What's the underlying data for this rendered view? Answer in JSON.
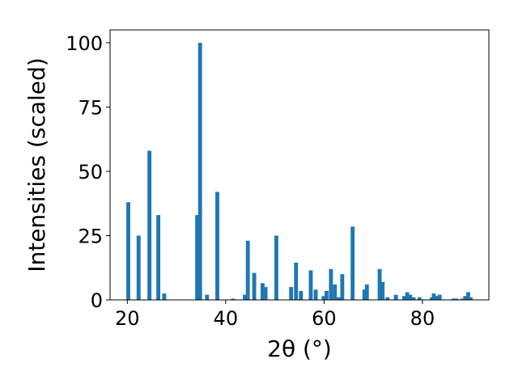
{
  "chart_data": {
    "type": "bar",
    "xlabel": "2θ (°)",
    "ylabel": "Intensities (scaled)",
    "xlim": [
      16.5,
      93.5
    ],
    "ylim": [
      0,
      105
    ],
    "xticks": [
      20,
      40,
      60,
      80
    ],
    "yticks": [
      0,
      25,
      50,
      75,
      100
    ],
    "bar_color": "#1f77b4",
    "bar_width": 0.8,
    "grid": false,
    "x": [
      20.2,
      22.3,
      24.5,
      26.3,
      27.5,
      34.2,
      34.8,
      36.2,
      38.3,
      41.5,
      43.9,
      44.5,
      45.8,
      47.5,
      48.1,
      50.3,
      53.3,
      54.3,
      55.3,
      57.3,
      58.3,
      59.9,
      60.5,
      61.4,
      62.2,
      62.9,
      63.7,
      65.8,
      68.2,
      68.7,
      71.3,
      71.9,
      72.9,
      74.6,
      76.3,
      76.9,
      77.5,
      78.2,
      79.4,
      81.9,
      82.3,
      82.9,
      83.5,
      86.3,
      86.9,
      88.1,
      88.7,
      89.3,
      89.8
    ],
    "values": [
      38,
      25,
      58,
      33,
      2.5,
      33,
      100,
      2,
      42,
      0.5,
      2,
      23,
      10.5,
      6.5,
      5,
      25,
      5,
      14.5,
      3.5,
      11.5,
      4,
      1.5,
      3.5,
      12,
      6,
      1,
      10,
      28.5,
      4,
      6,
      12,
      7,
      1,
      2,
      1.5,
      3,
      2,
      1,
      1,
      1,
      2.5,
      1.5,
      2,
      0.5,
      0.5,
      0.5,
      1.5,
      3,
      1
    ]
  }
}
